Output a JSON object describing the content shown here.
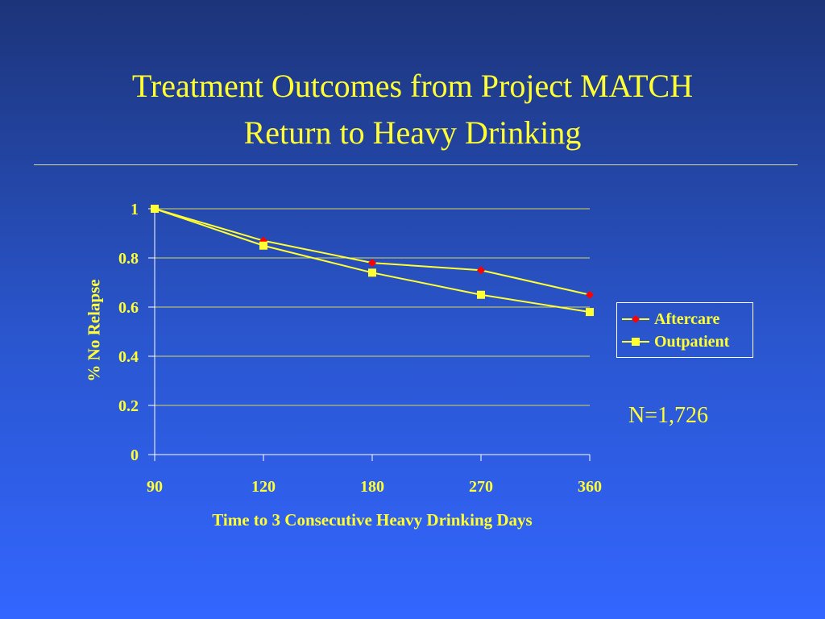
{
  "slide": {
    "title_line1": "Treatment Outcomes from Project MATCH",
    "title_line2": "Return to Heavy Drinking",
    "note": "N=1,726"
  },
  "colors": {
    "title": "#ffff33",
    "axis": "#ffffff",
    "gridline": "#d8d85a",
    "series_line": "#ffff33",
    "aftercare_marker": "#ff0000",
    "outpatient_marker": "#ffff33"
  },
  "chart_data": {
    "type": "line",
    "title": "",
    "xlabel": "Time to 3 Consecutive Heavy Drinking Days",
    "ylabel": "% No Relapse",
    "categories": [
      "90",
      "120",
      "180",
      "270",
      "360"
    ],
    "ylim": [
      0,
      1
    ],
    "yticks": [
      "0",
      "0.2",
      "0.4",
      "0.6",
      "0.8",
      "1"
    ],
    "grid": true,
    "legend_position": "right",
    "series": [
      {
        "name": "Aftercare",
        "marker": "diamond",
        "values": [
          1.0,
          0.87,
          0.78,
          0.75,
          0.65
        ]
      },
      {
        "name": "Outpatient",
        "marker": "square",
        "values": [
          1.0,
          0.85,
          0.74,
          0.65,
          0.58
        ]
      }
    ]
  }
}
